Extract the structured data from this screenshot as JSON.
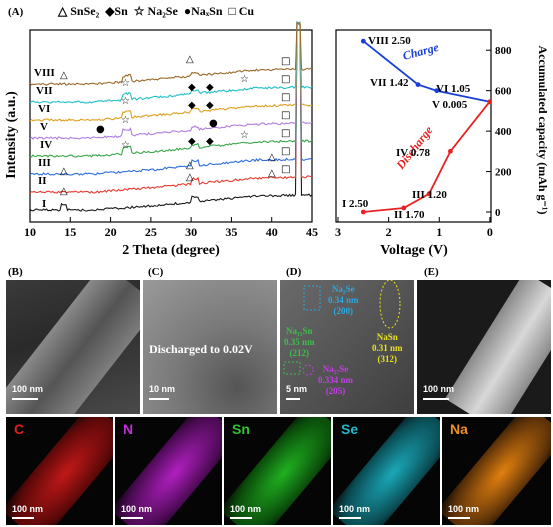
{
  "panel_a": {
    "letter": "(A)",
    "legend": [
      {
        "symbol": "△",
        "label": "SnSe₂"
      },
      {
        "symbol": "◆",
        "label": "Sn"
      },
      {
        "symbol": "☆",
        "label": "Na₂Se"
      },
      {
        "symbol": "●",
        "label": "NaₓSn"
      },
      {
        "symbol": "□",
        "label": "Cu"
      }
    ],
    "xrd": {
      "xlabel": "2 Theta (degree)",
      "ylabel": "Intensity (a.u.)",
      "xticks": [
        "10",
        "15",
        "20",
        "25",
        "30",
        "35",
        "40",
        "45"
      ],
      "xlim": [
        10,
        45
      ],
      "curves": [
        {
          "label": "I",
          "color": "#1a1a1a"
        },
        {
          "label": "II",
          "color": "#e63b2e"
        },
        {
          "label": "III",
          "color": "#2f6fdd"
        },
        {
          "label": "IV",
          "color": "#3aa84a"
        },
        {
          "label": "V",
          "color": "#b07ee0"
        },
        {
          "label": "VI",
          "color": "#e0a020"
        },
        {
          "label": "VII",
          "color": "#20c0c8"
        },
        {
          "label": "VIII",
          "color": "#9a6b2a"
        }
      ]
    },
    "voltage": {
      "xlabel": "Voltage (V)",
      "ylabel": "Accumulated capacity (mAh g⁻¹)",
      "xticks": [
        "3",
        "2",
        "1",
        "0"
      ],
      "yticks": [
        "0",
        "200",
        "400",
        "600",
        "800"
      ],
      "charge_label": "Charge",
      "discharge_label": "Discharge",
      "charge_color": "#1a3fd6",
      "discharge_color": "#e82222",
      "points": [
        {
          "label": "I 2.50",
          "v": 2.5,
          "cap": 0
        },
        {
          "label": "II 1.70",
          "v": 1.7,
          "cap": 20
        },
        {
          "label": "III 1.20",
          "v": 1.2,
          "cap": 90
        },
        {
          "label": "IV 0.78",
          "v": 0.78,
          "cap": 300
        },
        {
          "label": "V 0.005",
          "v": 0.005,
          "cap": 545
        },
        {
          "label": "VI 1.05",
          "v": 1.05,
          "cap": 600
        },
        {
          "label": "VII 1.42",
          "v": 1.42,
          "cap": 630
        },
        {
          "label": "VIII 2.50",
          "v": 2.5,
          "cap": 845
        }
      ]
    }
  },
  "panel_b": {
    "letter": "(B)",
    "scale": "100 nm"
  },
  "panel_c": {
    "letter": "(C)",
    "scale": "10 nm",
    "caption": "Discharged to 0.02V"
  },
  "panel_d": {
    "letter": "(D)",
    "scale": "5 nm",
    "annotations": [
      {
        "name": "na2se-200",
        "line1": "Na₂Se",
        "line2": "0.34 nm",
        "line3": "(200)",
        "color": "#2aa8e0"
      },
      {
        "name": "nasn-312",
        "line1": "NaSn",
        "line2": "0.31 nm",
        "line3": "(312)",
        "color": "#e8e020"
      },
      {
        "name": "na-sn-212",
        "line1": "Na₁₅Sn",
        "line2": "0.35 nm",
        "line3": "(212)",
        "color": "#3cbf4a"
      },
      {
        "name": "na-se-205",
        "line1": "Na₂₇Se",
        "line2": "0.334 nm",
        "line3": "(205)",
        "color": "#c040e0"
      }
    ]
  },
  "panel_e": {
    "letter": "(E)",
    "scale": "100 nm"
  },
  "maps": [
    {
      "element": "C",
      "color": "#e02020",
      "tint": "#c01818",
      "scale": "100 nm"
    },
    {
      "element": "N",
      "color": "#c030d8",
      "tint": "#b020c0",
      "scale": "100 nm"
    },
    {
      "element": "Sn",
      "color": "#30c030",
      "tint": "#20b020",
      "scale": "100 nm"
    },
    {
      "element": "Se",
      "color": "#20b8c8",
      "tint": "#1aa8b8",
      "scale": "100 nm"
    },
    {
      "element": "Na",
      "color": "#f09020",
      "tint": "#e08010",
      "scale": "100 nm"
    }
  ]
}
